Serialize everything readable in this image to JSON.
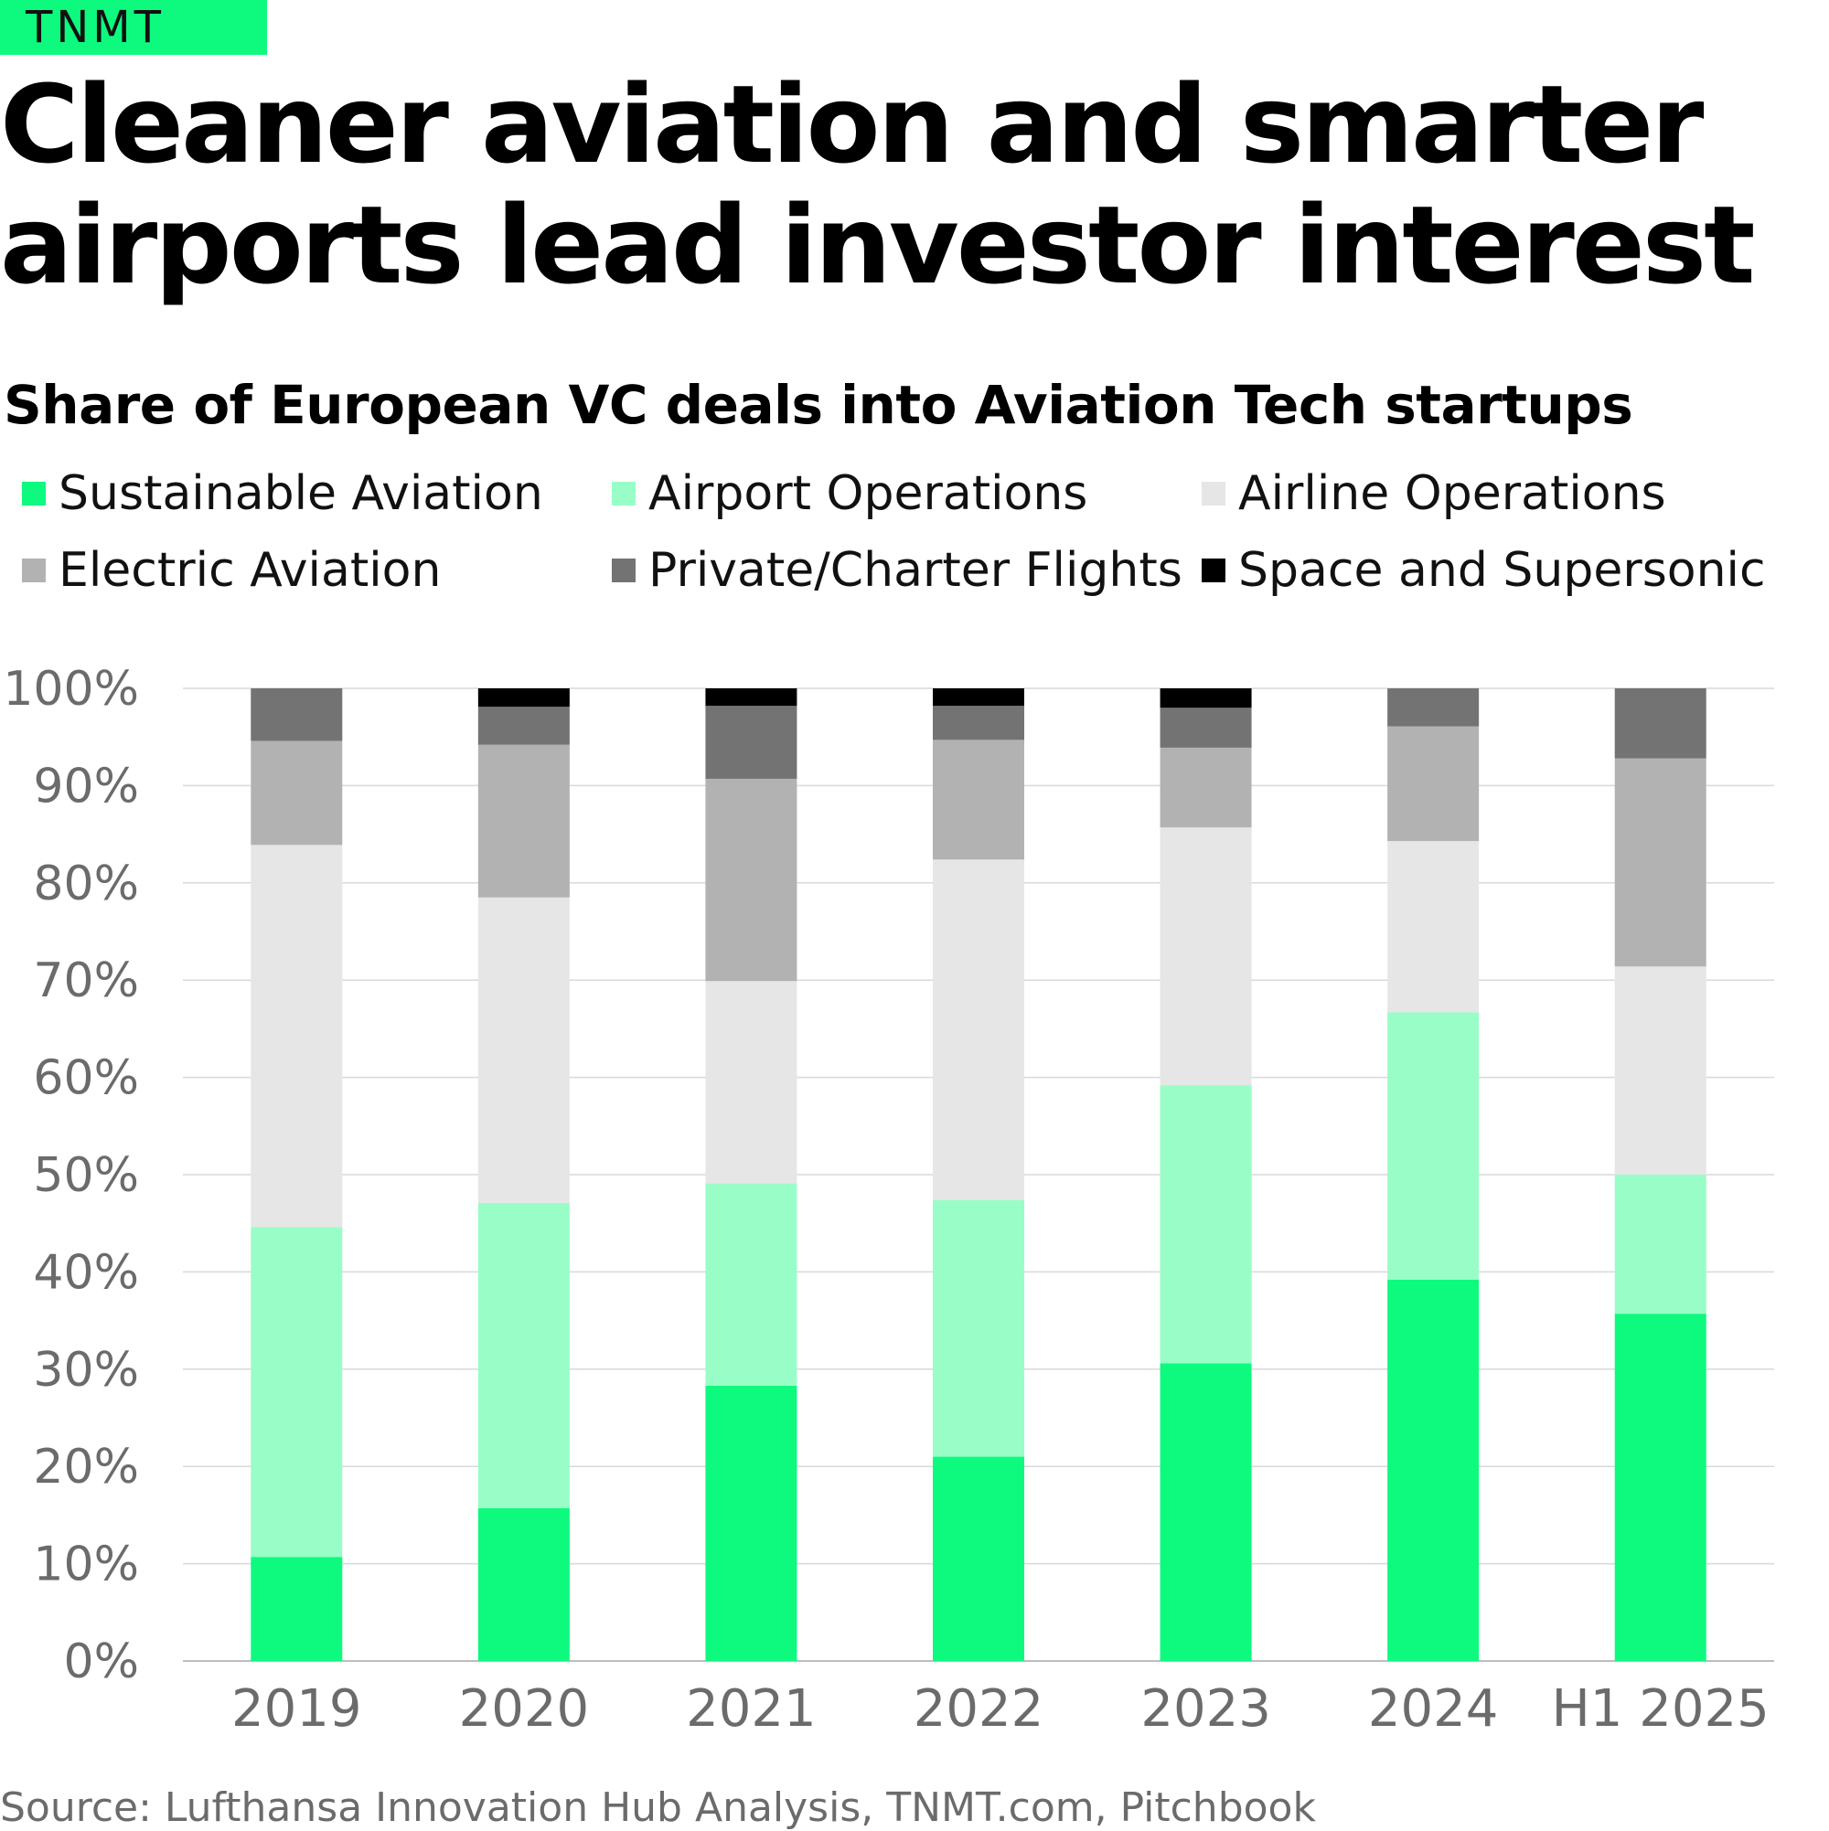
{
  "brand": {
    "name": "TNMT"
  },
  "headline": "Cleaner aviation and smarter airports lead investor interest",
  "source": "Source: Lufthansa Innovation Hub Analysis, TNMT.com, Pitchbook",
  "chart_data": {
    "type": "bar",
    "stacked": true,
    "title": "Share of European VC deals into Aviation Tech startups",
    "xlabel": "",
    "ylabel": "",
    "ylim": [
      0,
      100
    ],
    "yticks": [
      "0%",
      "10%",
      "20%",
      "30%",
      "40%",
      "50%",
      "60%",
      "70%",
      "80%",
      "90%",
      "100%"
    ],
    "grid": true,
    "legend_position": "top",
    "categories": [
      "2019",
      "2020",
      "2021",
      "2022",
      "2023",
      "2024",
      "H1 2025"
    ],
    "series": [
      {
        "name": "Sustainable Aviation",
        "color": "#0dfa7e",
        "values": [
          10.7,
          15.7,
          28.3,
          21.0,
          30.6,
          39.2,
          35.7
        ]
      },
      {
        "name": "Airport Operations",
        "color": "#99fdc8",
        "values": [
          33.9,
          31.4,
          20.8,
          26.4,
          28.6,
          27.5,
          14.3
        ]
      },
      {
        "name": "Airline Operations",
        "color": "#e6e6e6",
        "values": [
          39.3,
          31.4,
          20.8,
          35.0,
          26.5,
          17.6,
          21.4
        ]
      },
      {
        "name": "Electric Aviation",
        "color": "#b2b2b2",
        "values": [
          10.7,
          15.7,
          20.8,
          12.3,
          8.2,
          11.8,
          21.4
        ]
      },
      {
        "name": "Private/Charter Flights",
        "color": "#737373",
        "values": [
          5.4,
          3.9,
          7.5,
          3.5,
          4.1,
          3.9,
          7.2
        ]
      },
      {
        "name": "Space and Supersonic",
        "color": "#000000",
        "values": [
          0.0,
          1.9,
          1.8,
          1.8,
          2.0,
          0.0,
          0.0
        ]
      }
    ]
  }
}
